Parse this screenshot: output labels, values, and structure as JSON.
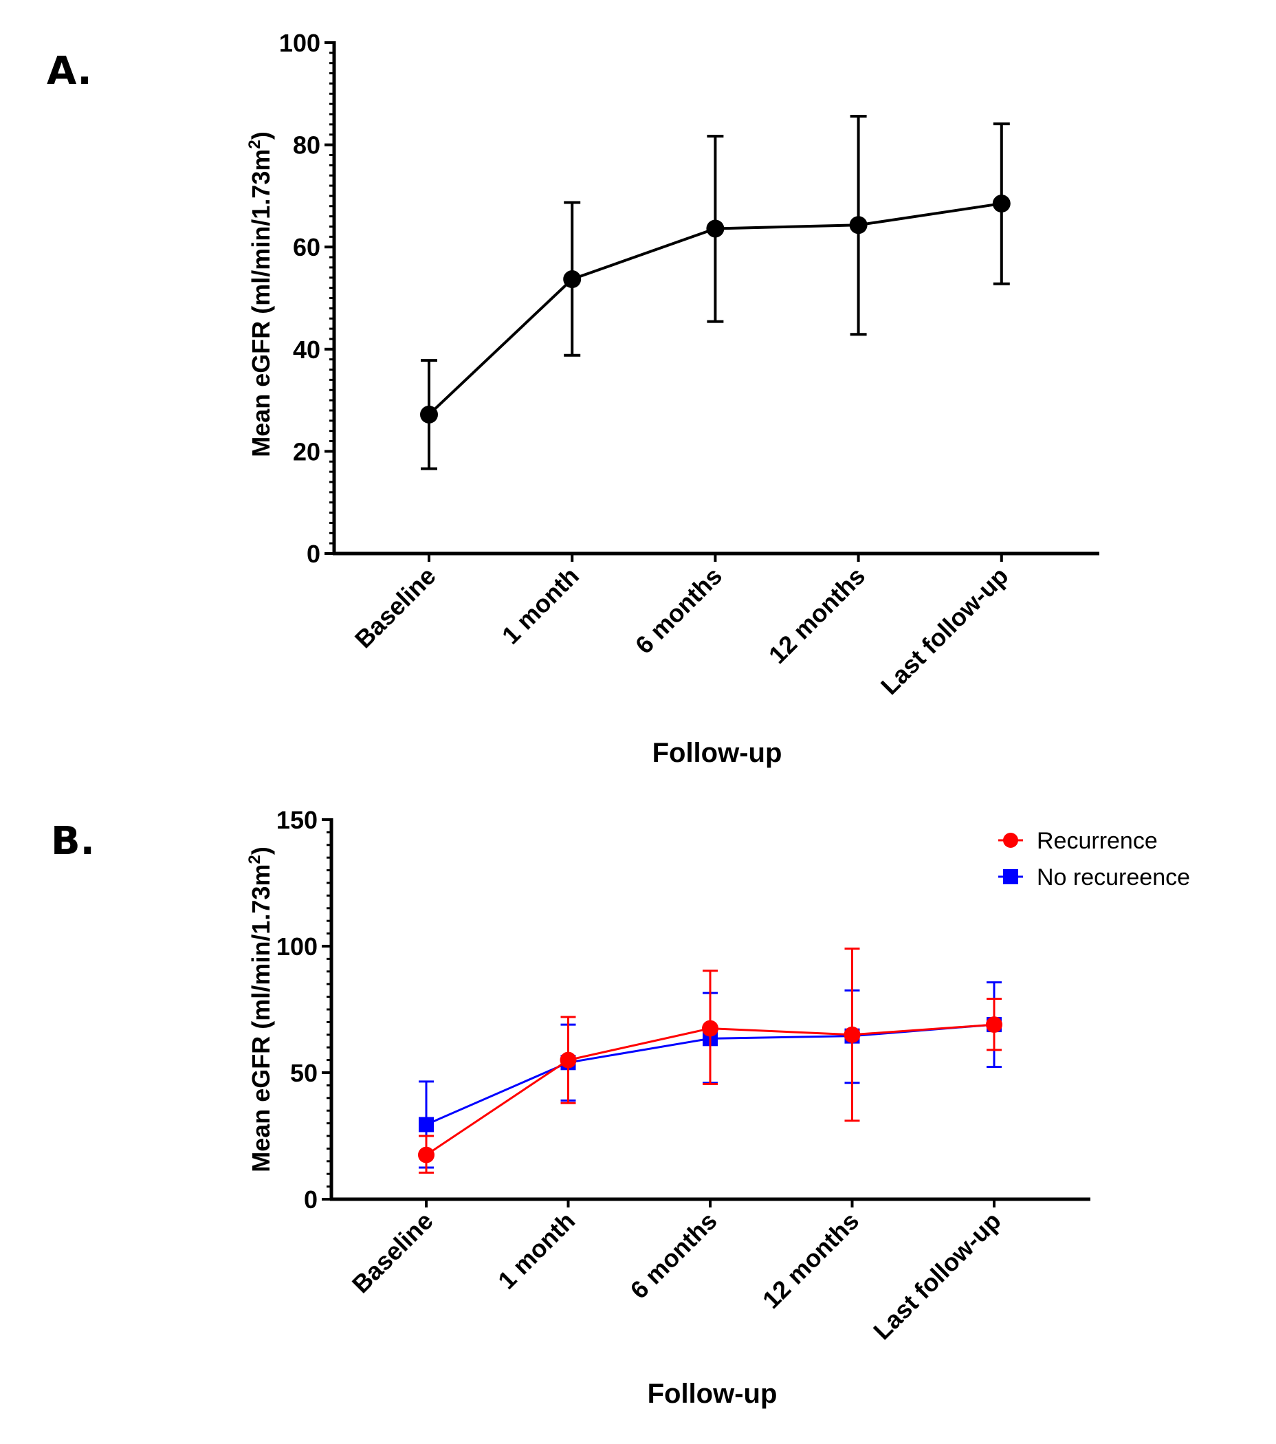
{
  "chart_data": [
    {
      "panel_label": "A.",
      "type": "line",
      "title": "",
      "xlabel": "Follow-up",
      "ylabel": "Mean eGFR  (ml/min/1.73m",
      "ylabel_sup": "2",
      "ylabel_close": ")",
      "ylim": [
        0,
        100
      ],
      "yticks": [
        0,
        20,
        40,
        60,
        80,
        100
      ],
      "yminor_step": 2,
      "grid": false,
      "categories": [
        "Baseline",
        "1 month",
        "6 months",
        "12 months",
        "Last follow-up"
      ],
      "series": [
        {
          "name": "All",
          "color": "#000000",
          "marker": "circle",
          "values": [
            27.2,
            53.7,
            63.6,
            64.3,
            68.5
          ],
          "err_upper": [
            37.8,
            68.7,
            81.7,
            85.6,
            84.1
          ],
          "err_lower": [
            16.6,
            38.8,
            45.4,
            42.9,
            52.8
          ]
        }
      ]
    },
    {
      "panel_label": "B.",
      "type": "line",
      "title": "",
      "xlabel": "Follow-up",
      "ylabel": "Mean eGFR  (ml/min/1.73m",
      "ylabel_sup": "2",
      "ylabel_close": ")",
      "ylim": [
        0,
        150
      ],
      "yticks": [
        0,
        50,
        100,
        150
      ],
      "yminor_step": 5,
      "grid": false,
      "legend_position": "top-right",
      "categories": [
        "Baseline",
        "1 month",
        "6 months",
        "12 months",
        "Last follow-up"
      ],
      "series": [
        {
          "name": "Recurrence",
          "color": "#ff0000",
          "marker": "circle",
          "values": [
            17.5,
            55.0,
            67.5,
            65.0,
            69.0
          ],
          "err_upper": [
            25.0,
            72.0,
            90.3,
            99.0,
            79.2
          ],
          "err_lower": [
            10.5,
            38.0,
            45.5,
            31.0,
            59.0
          ]
        },
        {
          "name": "No recureence",
          "color": "#0000ff",
          "marker": "square",
          "values": [
            29.5,
            54.0,
            63.5,
            64.5,
            69.0
          ],
          "err_upper": [
            46.5,
            69.0,
            81.5,
            82.5,
            85.7
          ],
          "err_lower": [
            12.5,
            39.0,
            46.0,
            46.0,
            52.3
          ]
        }
      ]
    }
  ]
}
